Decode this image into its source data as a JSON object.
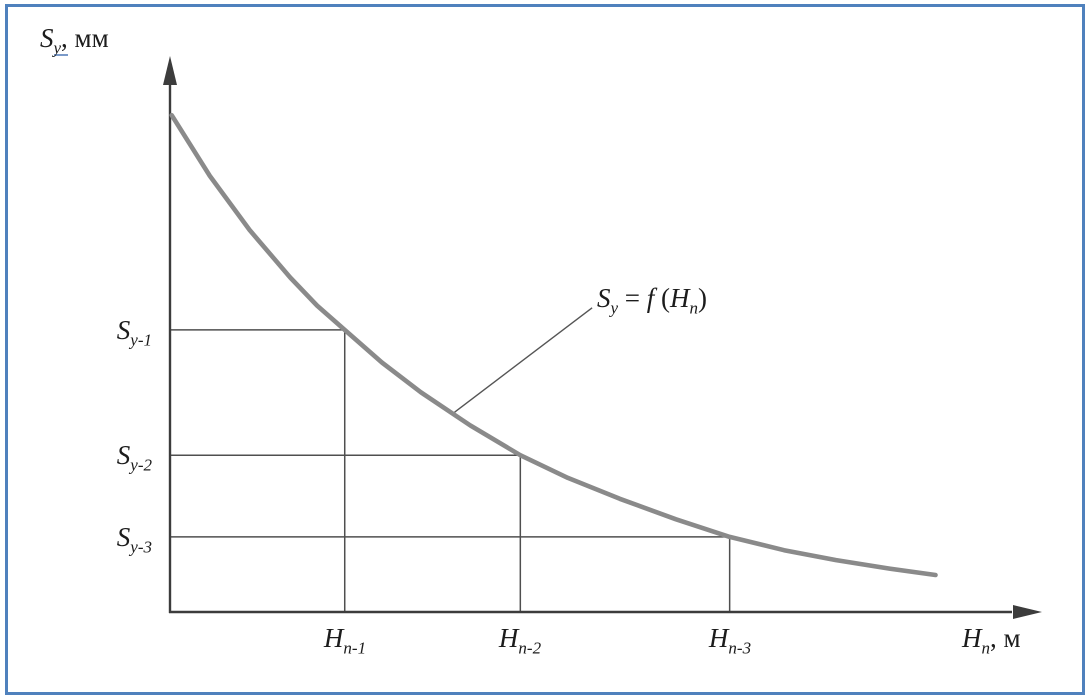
{
  "figure": {
    "border_color": "#4f81bd",
    "background": "#ffffff",
    "curve_color": "#8a8a8a",
    "axis_color": "#3c3c3c",
    "guide_color": "#4f4f4f",
    "text_color": "#1c1c1c",
    "underline_color": "#7a9ac9"
  },
  "chart_data": {
    "type": "line",
    "title": "",
    "ylabel": "Sу, мм",
    "xlabel": "Hп, м",
    "curve_label": "Sу = f (Hп)",
    "shape": "monotonically decreasing exponential-type curve",
    "grid": false,
    "legend": "none",
    "x_tick_labels": [
      "Hп-1",
      "Hп-2",
      "Hп-3"
    ],
    "y_tick_labels": [
      "Sу-1",
      "Sу-2",
      "Sу-3"
    ],
    "marked_points": [
      {
        "x_label": "Hп-1",
        "y_label": "Sу-1",
        "x_frac": 0.202,
        "y_frac": 0.511
      },
      {
        "x_label": "Hп-2",
        "y_label": "Sу-2",
        "x_frac": 0.405,
        "y_frac": 0.284
      },
      {
        "x_label": "Hп-3",
        "y_label": "Sу-3",
        "x_frac": 0.647,
        "y_frac": 0.136
      }
    ],
    "curve_points_frac": [
      [
        0.002,
        0.9
      ],
      [
        0.046,
        0.79
      ],
      [
        0.092,
        0.692
      ],
      [
        0.139,
        0.606
      ],
      [
        0.17,
        0.555
      ],
      [
        0.202,
        0.511
      ],
      [
        0.245,
        0.452
      ],
      [
        0.29,
        0.398
      ],
      [
        0.347,
        0.338
      ],
      [
        0.405,
        0.284
      ],
      [
        0.46,
        0.243
      ],
      [
        0.52,
        0.205
      ],
      [
        0.585,
        0.168
      ],
      [
        0.647,
        0.136
      ],
      [
        0.71,
        0.112
      ],
      [
        0.77,
        0.094
      ],
      [
        0.83,
        0.079
      ],
      [
        0.885,
        0.067
      ]
    ],
    "annotation": {
      "text": "Sу = f (Hп)",
      "leader_from_frac": [
        0.488,
        0.551
      ],
      "leader_to_frac": [
        0.329,
        0.362
      ]
    },
    "labels": {
      "ylabel": {
        "main": "S",
        "sub": "у",
        "comma": ",",
        "rest": " мм"
      },
      "xlabel": {
        "main": "H",
        "sub": "п",
        "rest": ", м"
      },
      "x_ticks": [
        {
          "main": "H",
          "sub": "п-1"
        },
        {
          "main": "H",
          "sub": "п-2"
        },
        {
          "main": "H",
          "sub": "п-3"
        }
      ],
      "y_ticks": [
        {
          "main": "S",
          "sub": "у-1"
        },
        {
          "main": "S",
          "sub": "у-2"
        },
        {
          "main": "S",
          "sub": "у-3"
        }
      ],
      "annotation": {
        "s": "S",
        "s_sub": "у",
        "eq": " = ",
        "f": "f",
        "open": " (",
        "h": "H",
        "h_sub": "п",
        "close": ")"
      }
    }
  }
}
